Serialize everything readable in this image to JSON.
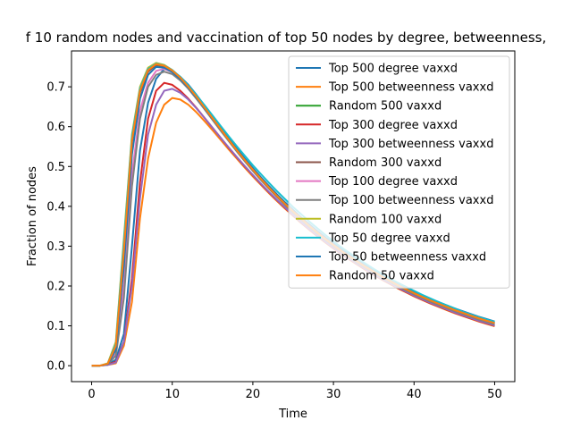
{
  "chart_data": {
    "type": "line",
    "title": "f 10 random nodes and vaccination of top 50 nodes by degree, betweenness,",
    "xlabel": "Time",
    "ylabel": "Fraction of nodes",
    "xlim": [
      -2.5,
      52.5
    ],
    "ylim": [
      -0.04,
      0.79
    ],
    "xticks": [
      0,
      10,
      20,
      30,
      40,
      50
    ],
    "yticks": [
      0.0,
      0.1,
      0.2,
      0.3,
      0.4,
      0.5,
      0.6,
      0.7
    ],
    "grid": false,
    "legend_position": "upper right",
    "x": [
      0,
      1,
      2,
      3,
      4,
      5,
      6,
      7,
      8,
      9,
      10,
      11,
      12,
      13,
      14,
      15,
      16,
      17,
      18,
      19,
      20,
      21,
      22,
      23,
      24,
      25,
      26,
      27,
      28,
      29,
      30,
      31,
      32,
      33,
      34,
      35,
      36,
      37,
      38,
      39,
      40,
      41,
      42,
      43,
      44,
      45,
      46,
      47,
      48,
      49,
      50
    ],
    "series": [
      {
        "name": "Top 500 degree vaxxd",
        "color": "#1f77b4",
        "values": [
          0,
          0,
          0.003,
          0.015,
          0.08,
          0.3,
          0.54,
          0.66,
          0.72,
          0.745,
          0.74,
          0.725,
          0.705,
          0.68,
          0.653,
          0.625,
          0.598,
          0.571,
          0.545,
          0.52,
          0.496,
          0.473,
          0.451,
          0.43,
          0.41,
          0.391,
          0.372,
          0.355,
          0.338,
          0.322,
          0.307,
          0.292,
          0.278,
          0.265,
          0.252,
          0.24,
          0.228,
          0.217,
          0.206,
          0.196,
          0.186,
          0.177,
          0.168,
          0.16,
          0.152,
          0.144,
          0.137,
          0.13,
          0.123,
          0.117,
          0.111
        ]
      },
      {
        "name": "Top 500 betweenness vaxxd",
        "color": "#ff7f0e",
        "values": [
          0,
          0,
          0.002,
          0.006,
          0.05,
          0.16,
          0.37,
          0.52,
          0.61,
          0.655,
          0.672,
          0.668,
          0.655,
          0.636,
          0.614,
          0.591,
          0.567,
          0.543,
          0.52,
          0.497,
          0.475,
          0.454,
          0.433,
          0.413,
          0.394,
          0.376,
          0.358,
          0.341,
          0.325,
          0.309,
          0.294,
          0.28,
          0.266,
          0.253,
          0.24,
          0.228,
          0.216,
          0.205,
          0.194,
          0.184,
          0.174,
          0.165,
          0.156,
          0.148,
          0.14,
          0.132,
          0.125,
          0.118,
          0.111,
          0.105,
          0.099
        ]
      },
      {
        "name": "Random 500 vaxxd",
        "color": "#2ca02c",
        "values": [
          0,
          0,
          0.005,
          0.05,
          0.3,
          0.57,
          0.69,
          0.74,
          0.755,
          0.75,
          0.738,
          0.72,
          0.697,
          0.672,
          0.645,
          0.618,
          0.591,
          0.565,
          0.539,
          0.514,
          0.49,
          0.467,
          0.445,
          0.424,
          0.404,
          0.385,
          0.367,
          0.35,
          0.333,
          0.317,
          0.302,
          0.288,
          0.274,
          0.261,
          0.248,
          0.236,
          0.224,
          0.213,
          0.202,
          0.192,
          0.182,
          0.173,
          0.164,
          0.156,
          0.148,
          0.14,
          0.133,
          0.126,
          0.119,
          0.113,
          0.107
        ]
      },
      {
        "name": "Top 300 degree vaxxd",
        "color": "#d62728",
        "values": [
          0,
          0,
          0.003,
          0.01,
          0.06,
          0.22,
          0.46,
          0.62,
          0.69,
          0.71,
          0.705,
          0.69,
          0.67,
          0.647,
          0.622,
          0.597,
          0.572,
          0.547,
          0.523,
          0.5,
          0.478,
          0.456,
          0.435,
          0.415,
          0.396,
          0.377,
          0.359,
          0.342,
          0.326,
          0.31,
          0.295,
          0.281,
          0.267,
          0.254,
          0.241,
          0.229,
          0.217,
          0.206,
          0.195,
          0.185,
          0.175,
          0.166,
          0.157,
          0.149,
          0.141,
          0.133,
          0.126,
          0.119,
          0.112,
          0.106,
          0.1
        ]
      },
      {
        "name": "Top 300 betweenness vaxxd",
        "color": "#9467bd",
        "values": [
          0,
          0,
          0.002,
          0.008,
          0.06,
          0.2,
          0.42,
          0.58,
          0.655,
          0.69,
          0.695,
          0.685,
          0.668,
          0.646,
          0.622,
          0.597,
          0.572,
          0.548,
          0.524,
          0.501,
          0.479,
          0.457,
          0.436,
          0.416,
          0.397,
          0.378,
          0.36,
          0.343,
          0.327,
          0.311,
          0.296,
          0.282,
          0.268,
          0.255,
          0.242,
          0.23,
          0.218,
          0.207,
          0.196,
          0.186,
          0.176,
          0.167,
          0.158,
          0.15,
          0.142,
          0.134,
          0.127,
          0.12,
          0.113,
          0.107,
          0.101
        ]
      },
      {
        "name": "Random 300 vaxxd",
        "color": "#8c564b",
        "values": [
          0,
          0,
          0.005,
          0.045,
          0.28,
          0.56,
          0.685,
          0.738,
          0.755,
          0.752,
          0.74,
          0.722,
          0.699,
          0.674,
          0.647,
          0.62,
          0.593,
          0.566,
          0.54,
          0.515,
          0.491,
          0.468,
          0.446,
          0.425,
          0.405,
          0.386,
          0.368,
          0.35,
          0.333,
          0.317,
          0.302,
          0.287,
          0.273,
          0.26,
          0.247,
          0.235,
          0.223,
          0.212,
          0.201,
          0.191,
          0.181,
          0.172,
          0.163,
          0.155,
          0.147,
          0.139,
          0.132,
          0.125,
          0.118,
          0.112,
          0.106
        ]
      },
      {
        "name": "Top 100 degree vaxxd",
        "color": "#e377c2",
        "values": [
          0,
          0,
          0.004,
          0.03,
          0.2,
          0.48,
          0.64,
          0.71,
          0.74,
          0.745,
          0.737,
          0.72,
          0.698,
          0.673,
          0.646,
          0.619,
          0.592,
          0.565,
          0.539,
          0.514,
          0.49,
          0.467,
          0.445,
          0.424,
          0.404,
          0.385,
          0.367,
          0.349,
          0.332,
          0.316,
          0.301,
          0.286,
          0.272,
          0.259,
          0.246,
          0.234,
          0.222,
          0.211,
          0.2,
          0.19,
          0.18,
          0.171,
          0.162,
          0.154,
          0.146,
          0.138,
          0.131,
          0.124,
          0.117,
          0.111,
          0.105
        ]
      },
      {
        "name": "Top 100 betweenness vaxxd",
        "color": "#7f7f7f",
        "values": [
          0,
          0,
          0.004,
          0.025,
          0.17,
          0.45,
          0.62,
          0.7,
          0.73,
          0.738,
          0.732,
          0.716,
          0.695,
          0.67,
          0.644,
          0.617,
          0.59,
          0.564,
          0.538,
          0.513,
          0.489,
          0.466,
          0.444,
          0.423,
          0.403,
          0.384,
          0.366,
          0.348,
          0.331,
          0.315,
          0.3,
          0.285,
          0.271,
          0.258,
          0.245,
          0.233,
          0.221,
          0.21,
          0.199,
          0.189,
          0.179,
          0.17,
          0.161,
          0.153,
          0.145,
          0.137,
          0.13,
          0.123,
          0.116,
          0.11,
          0.104
        ]
      },
      {
        "name": "Random 100 vaxxd",
        "color": "#bcbd22",
        "values": [
          0,
          0,
          0.006,
          0.06,
          0.32,
          0.58,
          0.7,
          0.748,
          0.76,
          0.755,
          0.742,
          0.723,
          0.7,
          0.675,
          0.648,
          0.621,
          0.594,
          0.567,
          0.541,
          0.516,
          0.492,
          0.469,
          0.447,
          0.426,
          0.406,
          0.387,
          0.369,
          0.351,
          0.334,
          0.318,
          0.303,
          0.288,
          0.274,
          0.261,
          0.248,
          0.236,
          0.224,
          0.213,
          0.202,
          0.192,
          0.182,
          0.173,
          0.164,
          0.156,
          0.148,
          0.14,
          0.133,
          0.126,
          0.119,
          0.113,
          0.107
        ]
      },
      {
        "name": "Top 50 degree vaxxd",
        "color": "#17becf",
        "values": [
          0,
          0,
          0.005,
          0.055,
          0.31,
          0.575,
          0.695,
          0.745,
          0.758,
          0.754,
          0.742,
          0.725,
          0.703,
          0.679,
          0.654,
          0.628,
          0.602,
          0.576,
          0.551,
          0.527,
          0.503,
          0.481,
          0.459,
          0.438,
          0.418,
          0.398,
          0.38,
          0.362,
          0.345,
          0.328,
          0.312,
          0.297,
          0.283,
          0.269,
          0.256,
          0.243,
          0.231,
          0.219,
          0.208,
          0.198,
          0.188,
          0.178,
          0.169,
          0.16,
          0.152,
          0.144,
          0.136,
          0.129,
          0.122,
          0.116,
          0.11
        ]
      },
      {
        "name": "Top 50 betweenness vaxxd",
        "color": "#1f77b4",
        "values": [
          0,
          0,
          0.004,
          0.04,
          0.25,
          0.53,
          0.67,
          0.73,
          0.75,
          0.748,
          0.737,
          0.72,
          0.698,
          0.673,
          0.647,
          0.62,
          0.593,
          0.567,
          0.541,
          0.516,
          0.492,
          0.469,
          0.447,
          0.426,
          0.406,
          0.387,
          0.369,
          0.351,
          0.334,
          0.318,
          0.303,
          0.288,
          0.274,
          0.261,
          0.248,
          0.236,
          0.224,
          0.213,
          0.202,
          0.192,
          0.182,
          0.173,
          0.164,
          0.156,
          0.148,
          0.14,
          0.133,
          0.126,
          0.119,
          0.113,
          0.107
        ]
      },
      {
        "name": "Random 50 vaxxd",
        "color": "#ff7f0e",
        "values": [
          0,
          0,
          0.005,
          0.05,
          0.29,
          0.565,
          0.69,
          0.742,
          0.757,
          0.753,
          0.741,
          0.723,
          0.7,
          0.675,
          0.648,
          0.621,
          0.594,
          0.567,
          0.541,
          0.516,
          0.492,
          0.469,
          0.447,
          0.426,
          0.406,
          0.387,
          0.369,
          0.351,
          0.334,
          0.318,
          0.303,
          0.288,
          0.274,
          0.261,
          0.248,
          0.236,
          0.224,
          0.213,
          0.202,
          0.192,
          0.182,
          0.173,
          0.164,
          0.156,
          0.148,
          0.14,
          0.133,
          0.126,
          0.119,
          0.113,
          0.107
        ]
      }
    ]
  }
}
